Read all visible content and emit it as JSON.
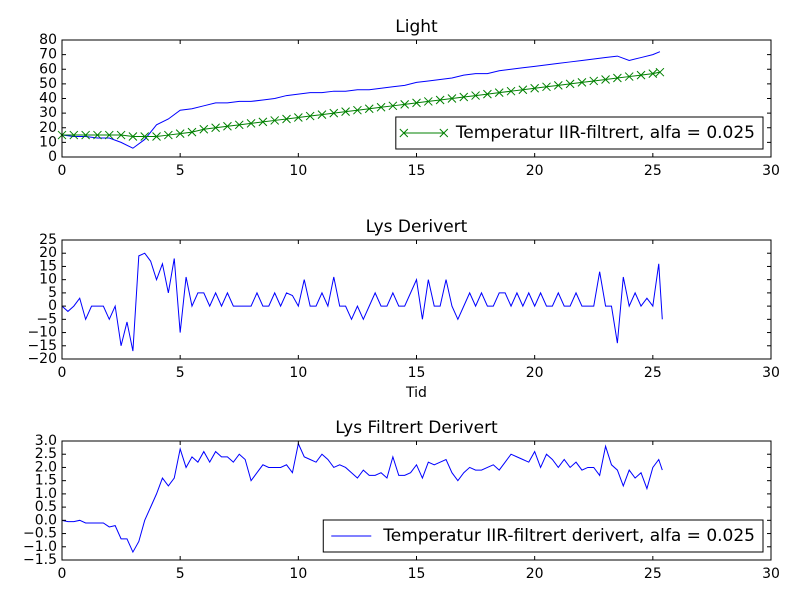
{
  "chart_data": [
    {
      "type": "line",
      "title": "Light",
      "x": [
        0,
        0.5,
        1,
        1.5,
        2,
        2.5,
        3,
        3.5,
        4,
        4.5,
        5,
        5.5,
        6,
        6.5,
        7,
        7.5,
        8,
        8.5,
        9,
        9.5,
        10,
        10.5,
        11,
        11.5,
        12,
        12.5,
        13,
        13.5,
        14,
        14.5,
        15,
        15.5,
        16,
        16.5,
        17,
        17.5,
        18,
        18.5,
        19,
        19.5,
        20,
        20.5,
        21,
        21.5,
        22,
        22.5,
        23,
        23.5,
        24,
        24.5,
        25,
        25.3
      ],
      "series": [
        {
          "color": "#0000ff",
          "values": [
            15,
            14,
            14,
            13,
            13,
            10,
            6,
            12,
            22,
            26,
            32,
            33,
            35,
            37,
            37,
            38,
            38,
            39,
            40,
            42,
            43,
            44,
            44,
            45,
            45,
            46,
            46,
            47,
            48,
            49,
            51,
            52,
            53,
            54,
            56,
            57,
            57,
            59,
            60,
            61,
            62,
            63,
            64,
            65,
            66,
            67,
            68,
            69,
            66,
            68,
            70,
            72
          ]
        },
        {
          "name": "Temperatur IIR-filtrert, alfa = 0.025",
          "color": "#008000",
          "marker": "x",
          "values": [
            15,
            15,
            15,
            15,
            15,
            15,
            14,
            14,
            14,
            15,
            16,
            17,
            19,
            20,
            21,
            22,
            23,
            24,
            25,
            26,
            27,
            28,
            29,
            30,
            31,
            32,
            33,
            34,
            35,
            36,
            37,
            38,
            39,
            40,
            41,
            42,
            43,
            44,
            45,
            46,
            47,
            48,
            49,
            50,
            51,
            52,
            53,
            54,
            55,
            56,
            57,
            58
          ]
        }
      ],
      "xlim": [
        0,
        30
      ],
      "xticks": [
        0,
        5,
        10,
        15,
        20,
        25,
        30
      ],
      "ylim": [
        0,
        80
      ],
      "yticks": [
        0,
        10,
        20,
        30,
        40,
        50,
        60,
        70,
        80
      ],
      "legend": "lower right"
    },
    {
      "type": "line",
      "title": "Lys Derivert",
      "xlabel": "Tid",
      "x": [
        0,
        0.25,
        0.5,
        0.75,
        1,
        1.25,
        1.5,
        1.75,
        2,
        2.25,
        2.5,
        2.75,
        3,
        3.25,
        3.5,
        3.75,
        4,
        4.25,
        4.5,
        4.75,
        5,
        5.25,
        5.5,
        5.75,
        6,
        6.25,
        6.5,
        6.75,
        7,
        7.25,
        7.5,
        7.75,
        8,
        8.25,
        8.5,
        8.75,
        9,
        9.25,
        9.5,
        9.75,
        10,
        10.25,
        10.5,
        10.75,
        11,
        11.25,
        11.5,
        11.75,
        12,
        12.25,
        12.5,
        12.75,
        13,
        13.25,
        13.5,
        13.75,
        14,
        14.25,
        14.5,
        14.75,
        15,
        15.25,
        15.5,
        15.75,
        16,
        16.25,
        16.5,
        16.75,
        17,
        17.25,
        17.5,
        17.75,
        18,
        18.25,
        18.5,
        18.75,
        19,
        19.25,
        19.5,
        19.75,
        20,
        20.25,
        20.5,
        20.75,
        21,
        21.25,
        21.5,
        21.75,
        22,
        22.25,
        22.5,
        22.75,
        23,
        23.25,
        23.5,
        23.75,
        24,
        24.25,
        24.5,
        24.75,
        25,
        25.25,
        25.4
      ],
      "series": [
        {
          "color": "#0000ff",
          "values": [
            0,
            -2,
            0,
            3,
            -5,
            0,
            0,
            0,
            -5,
            0,
            -15,
            -6,
            -17,
            19,
            20,
            17,
            10,
            16,
            5,
            18,
            -10,
            11,
            0,
            5,
            5,
            0,
            5,
            0,
            5,
            0,
            0,
            0,
            0,
            5,
            0,
            0,
            5,
            0,
            5,
            4,
            0,
            10,
            0,
            0,
            5,
            0,
            11,
            0,
            0,
            -5,
            0,
            -5,
            0,
            5,
            0,
            0,
            5,
            0,
            0,
            5,
            10,
            -5,
            10,
            0,
            0,
            10,
            0,
            -5,
            0,
            5,
            0,
            5,
            0,
            0,
            5,
            5,
            0,
            5,
            0,
            5,
            0,
            5,
            0,
            0,
            5,
            0,
            0,
            5,
            0,
            0,
            0,
            13,
            0,
            0,
            -14,
            11,
            0,
            5,
            0,
            3,
            0,
            16,
            -5
          ]
        }
      ],
      "xlim": [
        0,
        30
      ],
      "xticks": [
        0,
        5,
        10,
        15,
        20,
        25,
        30
      ],
      "ylim": [
        -20,
        25
      ],
      "yticks": [
        {
          "value": -20,
          "label": "−20"
        },
        {
          "value": -15,
          "label": "−15"
        },
        {
          "value": -10,
          "label": "−10"
        },
        {
          "value": -5,
          "label": "−5"
        },
        0,
        5,
        10,
        15,
        20,
        25
      ]
    },
    {
      "type": "line",
      "title": "Lys Filtrert Derivert",
      "x": [
        0,
        0.25,
        0.5,
        0.75,
        1,
        1.25,
        1.5,
        1.75,
        2,
        2.25,
        2.5,
        2.75,
        3,
        3.25,
        3.5,
        3.75,
        4,
        4.25,
        4.5,
        4.75,
        5,
        5.25,
        5.5,
        5.75,
        6,
        6.25,
        6.5,
        6.75,
        7,
        7.25,
        7.5,
        7.75,
        8,
        8.25,
        8.5,
        8.75,
        9,
        9.25,
        9.5,
        9.75,
        10,
        10.25,
        10.5,
        10.75,
        11,
        11.25,
        11.5,
        11.75,
        12,
        12.25,
        12.5,
        12.75,
        13,
        13.25,
        13.5,
        13.75,
        14,
        14.25,
        14.5,
        14.75,
        15,
        15.25,
        15.5,
        15.75,
        16,
        16.25,
        16.5,
        16.75,
        17,
        17.25,
        17.5,
        17.75,
        18,
        18.25,
        18.5,
        18.75,
        19,
        19.25,
        19.5,
        19.75,
        20,
        20.25,
        20.5,
        20.75,
        21,
        21.25,
        21.5,
        21.75,
        22,
        22.25,
        22.5,
        22.75,
        23,
        23.25,
        23.5,
        23.75,
        24,
        24.25,
        24.5,
        24.75,
        25,
        25.25,
        25.4
      ],
      "series": [
        {
          "name": "Temperatur IIR-filtrert derivert, alfa = 0.025",
          "color": "#0000ff",
          "values": [
            0,
            -0.05,
            -0.05,
            0,
            -0.1,
            -0.1,
            -0.1,
            -0.1,
            -0.25,
            -0.2,
            -0.7,
            -0.7,
            -1.2,
            -0.8,
            0,
            0.5,
            1.0,
            1.6,
            1.3,
            1.6,
            2.7,
            2.0,
            2.4,
            2.2,
            2.6,
            2.2,
            2.6,
            2.4,
            2.4,
            2.2,
            2.5,
            2.3,
            1.5,
            1.8,
            2.1,
            2.0,
            2.0,
            2.0,
            2.1,
            1.8,
            2.9,
            2.4,
            2.3,
            2.2,
            2.5,
            2.3,
            2.0,
            2.1,
            2.0,
            1.8,
            1.6,
            1.9,
            1.7,
            1.7,
            1.8,
            1.6,
            2.4,
            1.7,
            1.7,
            1.8,
            2.1,
            1.6,
            2.2,
            2.1,
            2.2,
            2.3,
            1.8,
            1.5,
            1.8,
            2.0,
            1.9,
            1.9,
            2.0,
            2.1,
            1.9,
            2.2,
            2.5,
            2.4,
            2.3,
            2.2,
            2.6,
            2.0,
            2.5,
            2.3,
            2.0,
            2.3,
            2.0,
            2.2,
            1.9,
            2.0,
            2.0,
            1.7,
            2.8,
            2.1,
            1.9,
            1.3,
            1.9,
            1.6,
            1.8,
            1.2,
            2.0,
            2.3,
            1.9
          ]
        }
      ],
      "xlim": [
        0,
        30
      ],
      "xticks": [
        0,
        5,
        10,
        15,
        20,
        25,
        30
      ],
      "ylim": [
        -1.5,
        3.0
      ],
      "yticks": [
        {
          "value": -1.5,
          "label": "−1.5"
        },
        {
          "value": -1.0,
          "label": "−1.0"
        },
        {
          "value": -0.5,
          "label": "−0.5"
        },
        {
          "value": 0,
          "label": "0.0"
        },
        0.5,
        {
          "value": 1.0,
          "label": "1.0"
        },
        1.5,
        {
          "value": 2.0,
          "label": "2.0"
        },
        2.5,
        {
          "value": 3.0,
          "label": "3.0"
        }
      ],
      "legend": "lower right"
    }
  ]
}
